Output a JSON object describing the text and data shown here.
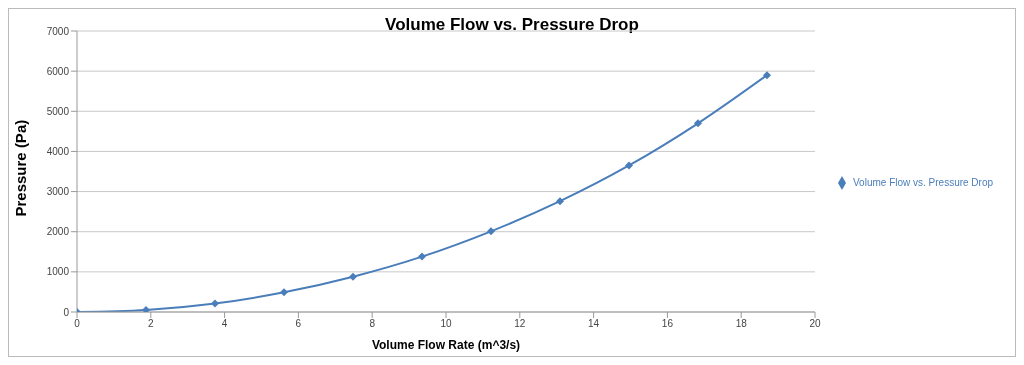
{
  "chart_data": {
    "type": "line",
    "title": "Volume Flow vs. Pressure Drop",
    "xlabel": "Volume Flow Rate (m^3/s)",
    "ylabel": "Pressure (Pa)",
    "x": [
      0,
      1.87,
      3.74,
      5.61,
      7.48,
      9.35,
      11.22,
      13.09,
      14.96,
      16.83,
      18.7
    ],
    "series": [
      {
        "name": "Volume Flow vs. Pressure Drop",
        "color": "#4a7ebb",
        "values": [
          0,
          50,
          210,
          490,
          880,
          1380,
          2010,
          2760,
          3650,
          4700,
          5900
        ]
      }
    ],
    "xlim": [
      0,
      20
    ],
    "xticks": [
      0,
      2,
      4,
      6,
      8,
      10,
      12,
      14,
      16,
      18,
      20
    ],
    "ylim": [
      0,
      7000
    ],
    "yticks": [
      0,
      1000,
      2000,
      3000,
      4000,
      5000,
      6000,
      7000
    ],
    "grid": "y",
    "legend": "right",
    "marker": "diamond",
    "line_style": "solid"
  }
}
